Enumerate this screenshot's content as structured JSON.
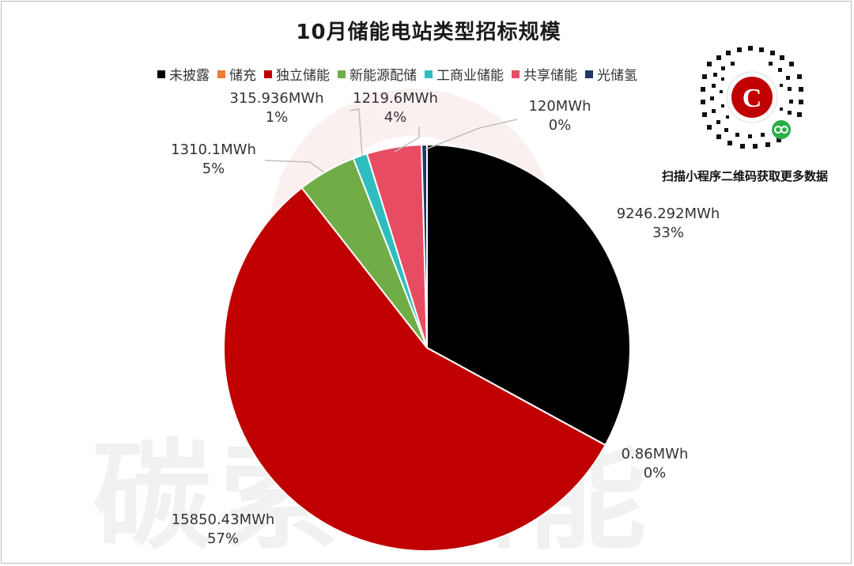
{
  "chart_data": {
    "type": "pie",
    "title": "10月储能电站类型招标规模",
    "legend_position": "top",
    "series": [
      {
        "name": "未披露",
        "value": 9246.292,
        "value_label": "9246.292MWh",
        "percent_label": "33%",
        "color": "#000000"
      },
      {
        "name": "储充",
        "value": 0.86,
        "value_label": "0.86MWh",
        "percent_label": "0%",
        "color": "#ED7D31"
      },
      {
        "name": "独立储能",
        "value": 15850.43,
        "value_label": "15850.43MWh",
        "percent_label": "57%",
        "color": "#C00000"
      },
      {
        "name": "新能源配储",
        "value": 1310.1,
        "value_label": "1310.1MWh",
        "percent_label": "5%",
        "color": "#70AD47"
      },
      {
        "name": "工商业储能",
        "value": 315.936,
        "value_label": "315.936MWh",
        "percent_label": "1%",
        "color": "#2EBEC0"
      },
      {
        "name": "共享储能",
        "value": 1219.6,
        "value_label": "1219.6MWh",
        "percent_label": "4%",
        "color": "#E84C62"
      },
      {
        "name": "光储氢",
        "value": 120,
        "value_label": "120MWh",
        "percent_label": "0%",
        "color": "#203864"
      }
    ]
  },
  "watermark": "碳索 储能",
  "qr_caption": "扫描小程序二维码获取更多数据",
  "qr_logo_letter": "C"
}
